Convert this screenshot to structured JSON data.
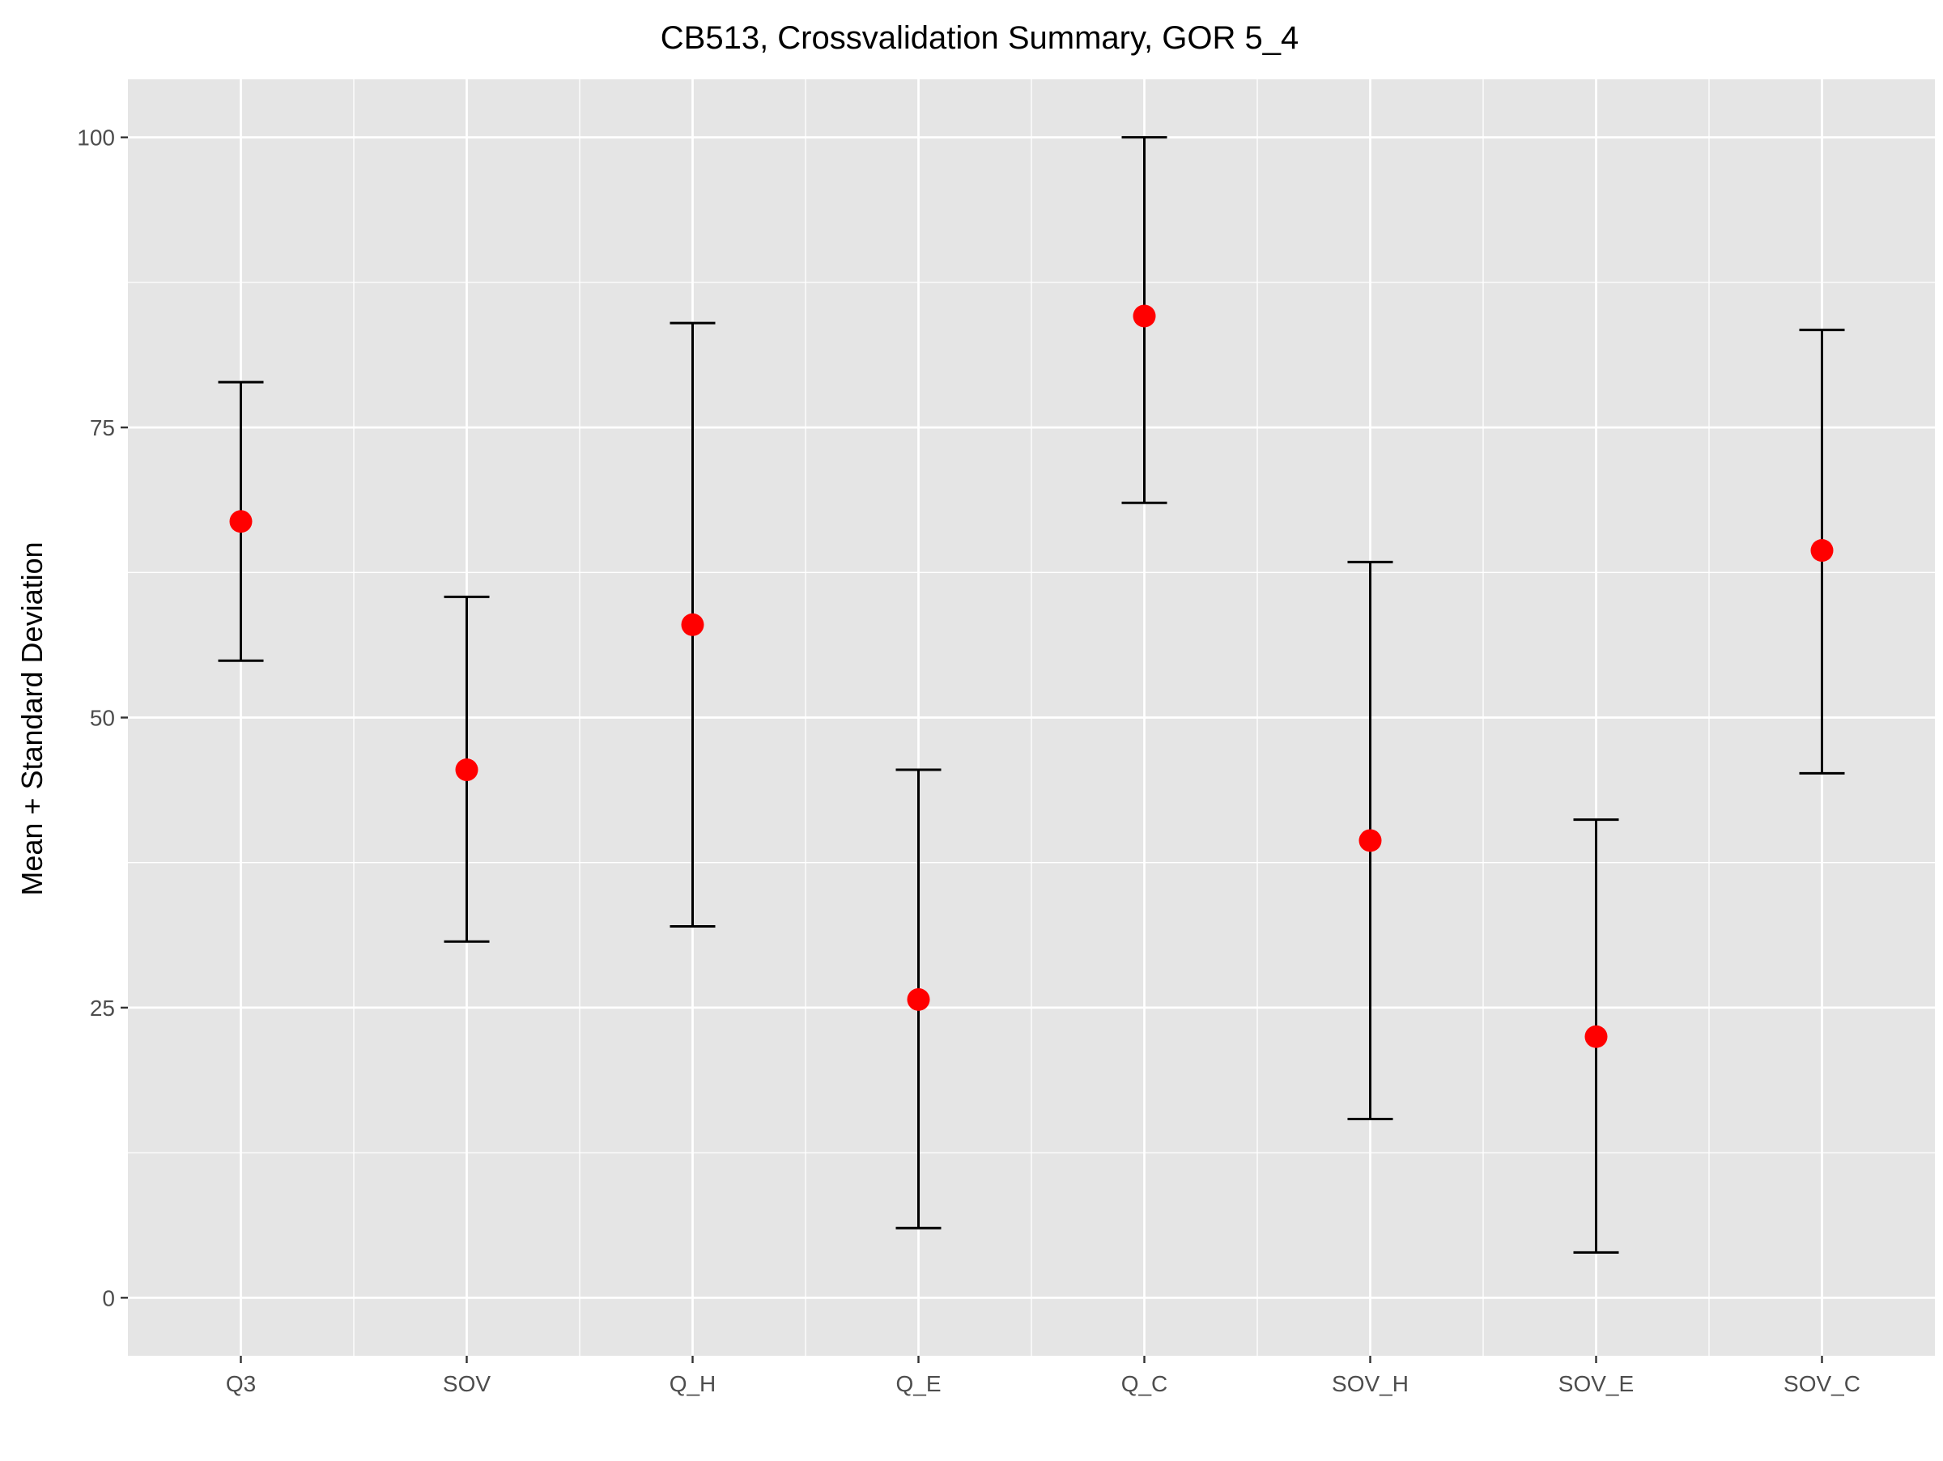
{
  "chart_data": {
    "type": "scatter",
    "title": "CB513, Crossvalidation Summary, GOR 5_4",
    "xlabel": "",
    "ylabel": "Mean + Standard Deviation",
    "categories": [
      "Q3",
      "SOV",
      "Q_H",
      "Q_E",
      "Q_C",
      "SOV_H",
      "SOV_E",
      "SOV_C"
    ],
    "series": [
      {
        "mean": [
          66.9,
          45.5,
          58.0,
          25.7,
          84.6,
          39.4,
          22.5,
          64.4
        ],
        "lower": [
          54.9,
          30.7,
          32.0,
          6.0,
          68.5,
          15.4,
          3.9,
          45.2
        ],
        "upper": [
          78.9,
          60.4,
          84.0,
          45.5,
          100.0,
          63.4,
          41.2,
          83.4
        ]
      }
    ],
    "yticks": [
      0,
      25,
      50,
      75,
      100
    ],
    "ylim": [
      -5,
      105
    ],
    "grid": true,
    "legend": "none",
    "colors": {
      "panel": "#e5e5e5",
      "grid": "#ffffff",
      "point": "#ff0000",
      "errorbar": "#000000",
      "tick_text": "#4d4d4d",
      "title_text": "#000000"
    }
  }
}
